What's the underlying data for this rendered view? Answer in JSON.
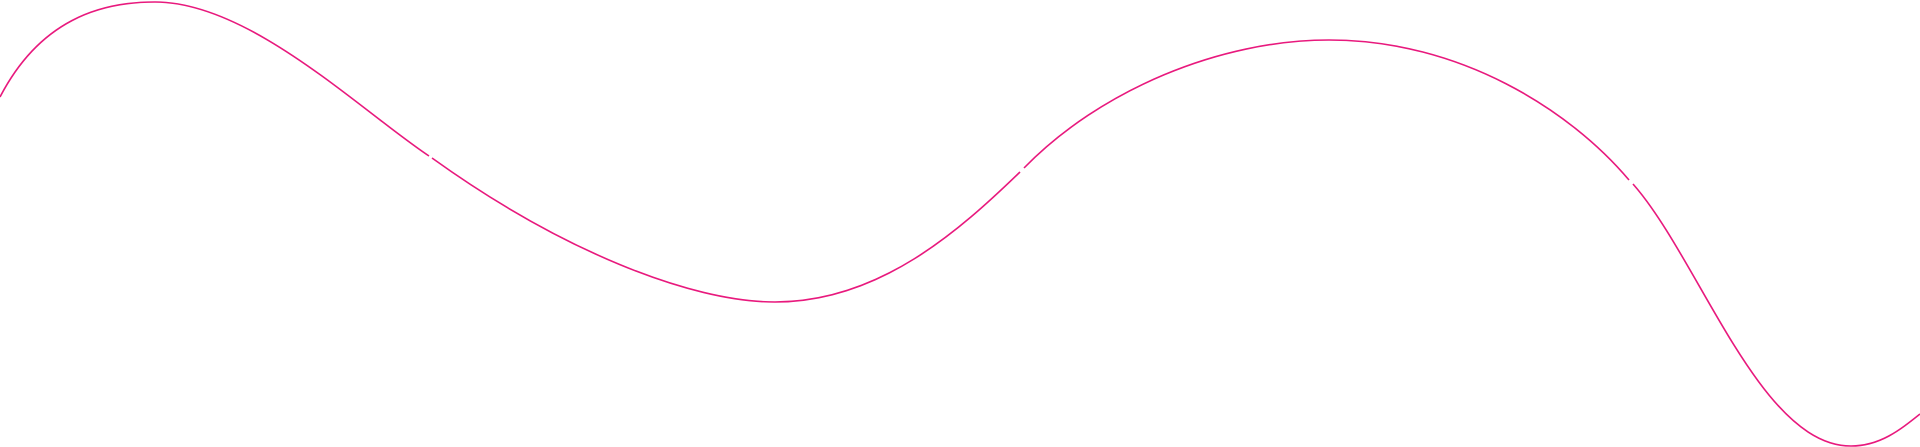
{
  "decoration": {
    "type": "wavy-line",
    "stroke_color": "#e8197d",
    "background_color": "#ffffff",
    "segments": 4
  }
}
